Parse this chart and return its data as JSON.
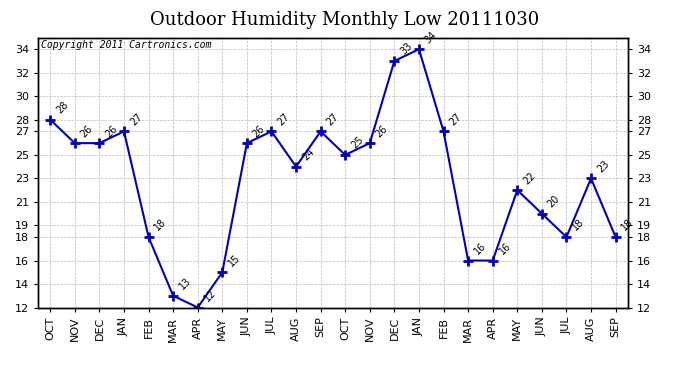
{
  "title": "Outdoor Humidity Monthly Low 20111030",
  "copyright_text": "Copyright 2011 Cartronics.com",
  "months": [
    "OCT",
    "NOV",
    "DEC",
    "JAN",
    "FEB",
    "MAR",
    "APR",
    "MAY",
    "JUN",
    "JUL",
    "AUG",
    "SEP",
    "OCT",
    "NOV",
    "DEC",
    "JAN",
    "FEB",
    "MAR",
    "APR",
    "MAY",
    "JUN",
    "JUL",
    "AUG",
    "SEP"
  ],
  "values": [
    28,
    26,
    26,
    27,
    18,
    13,
    12,
    15,
    26,
    27,
    24,
    27,
    25,
    26,
    33,
    34,
    27,
    16,
    16,
    22,
    20,
    18,
    23,
    18
  ],
  "line_color": "#0000bb",
  "marker": "+",
  "marker_color": "#0000bb",
  "ylim_min": 12,
  "ylim_max": 35,
  "yticks": [
    12,
    14,
    16,
    18,
    19,
    21,
    23,
    25,
    27,
    28,
    30,
    32,
    34
  ],
  "grid_color": "#bbbbbb",
  "bg_color": "#ffffff",
  "title_fontsize": 13,
  "annotation_fontsize": 7,
  "tick_fontsize": 8,
  "copyright_fontsize": 7
}
